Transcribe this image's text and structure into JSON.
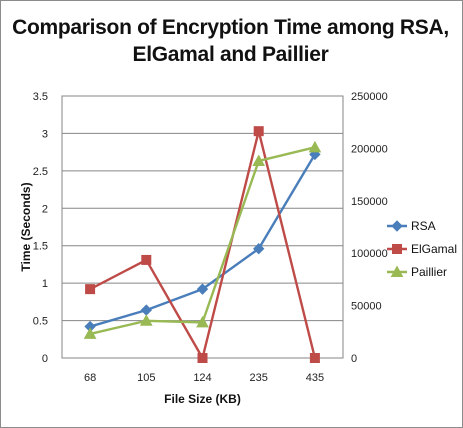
{
  "chart_data": {
    "type": "line",
    "title_lines": [
      "Comparison of Encryption Time among RSA,",
      "ElGamal and Paillier"
    ],
    "xlabel": "File Size (KB)",
    "ylabel": "Time  (Seconds)",
    "categories": [
      "68",
      "105",
      "124",
      "235",
      "435"
    ],
    "ylim": [
      0,
      3.5
    ],
    "y_ticks": [
      "0",
      "0.5",
      "1",
      "1.5",
      "2",
      "2.5",
      "3",
      "3.5"
    ],
    "y2lim": [
      0,
      250000
    ],
    "y2_ticks": [
      "0",
      "50000",
      "100000",
      "150000",
      "200000",
      "250000"
    ],
    "grid": "horizontal",
    "legend_position": "right",
    "series": [
      {
        "name": "RSA",
        "axis": "left",
        "color": "#4a7ebb",
        "marker": "diamond",
        "values": [
          0.42,
          0.64,
          0.92,
          1.46,
          2.72
        ]
      },
      {
        "name": "ElGamal",
        "axis": "left",
        "color": "#be4b48",
        "marker": "square",
        "values": [
          0.92,
          1.31,
          0,
          3.03,
          0
        ]
      },
      {
        "name": "Paillier",
        "axis": "right",
        "color": "#98b954",
        "marker": "triangle",
        "values": [
          23000,
          35500,
          34000,
          188000,
          201000
        ]
      }
    ]
  }
}
